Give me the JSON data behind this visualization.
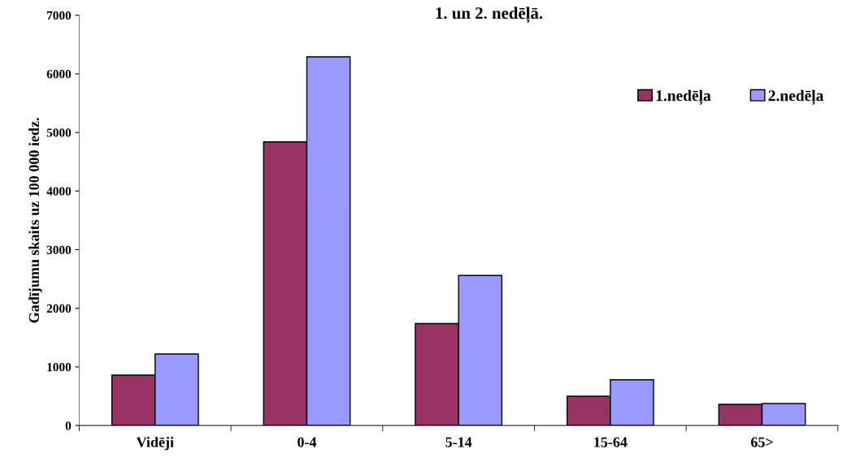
{
  "chart_data": {
    "type": "bar",
    "title": "1. un 2. nedēļā.",
    "ylabel": "Gadījumu skaits uz 100 000 iedz.",
    "categories": [
      "Vidēji",
      "0-4",
      "5-14",
      "15-64",
      "65>"
    ],
    "series": [
      {
        "name": "1.nedēļa",
        "color": "#993366",
        "values": [
          860,
          4840,
          1740,
          500,
          360
        ]
      },
      {
        "name": "2.nedēļa",
        "color": "#9999ff",
        "values": [
          1220,
          6290,
          2560,
          780,
          375
        ]
      }
    ],
    "ylim": [
      0,
      7000
    ],
    "yticks": [
      0,
      1000,
      2000,
      3000,
      4000,
      5000,
      6000,
      7000
    ],
    "grid": false,
    "legend": "right"
  }
}
